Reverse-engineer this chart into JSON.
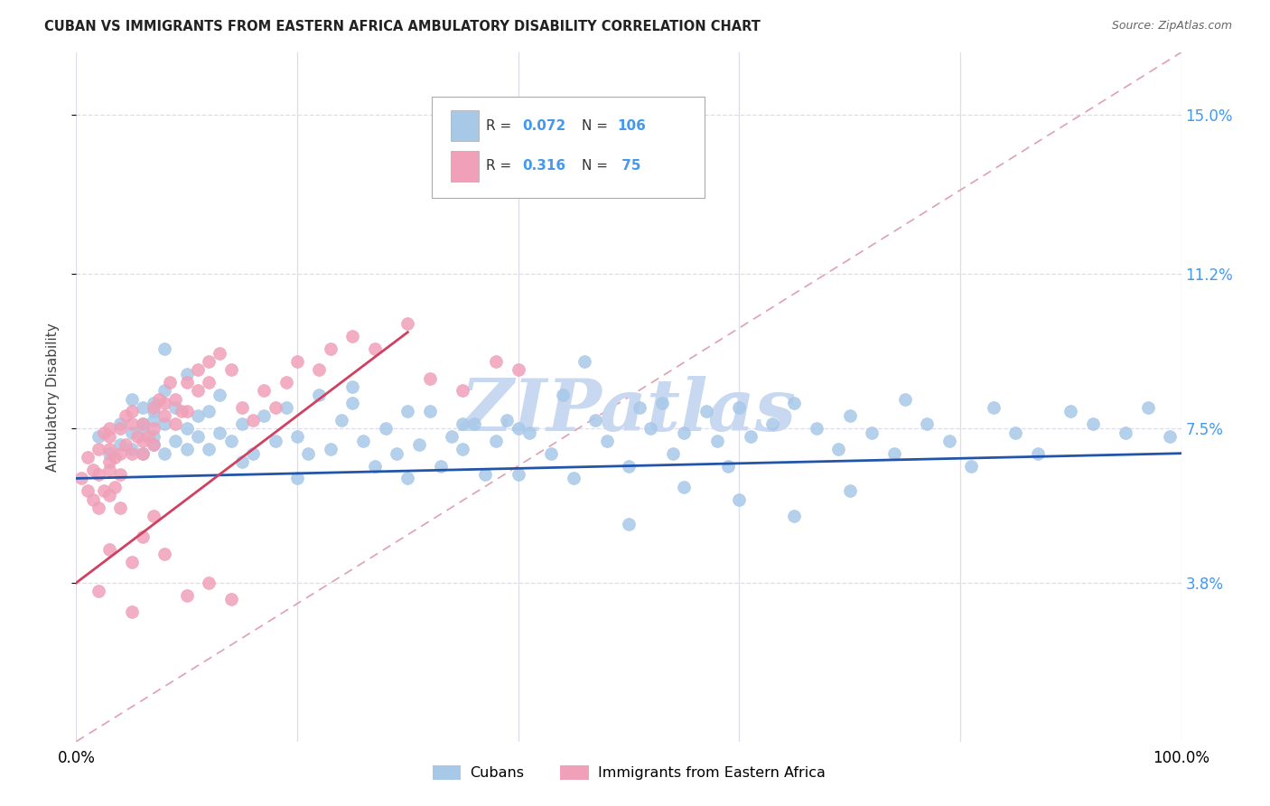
{
  "title": "CUBAN VS IMMIGRANTS FROM EASTERN AFRICA AMBULATORY DISABILITY CORRELATION CHART",
  "source": "Source: ZipAtlas.com",
  "ylabel": "Ambulatory Disability",
  "xlim": [
    0,
    1.0
  ],
  "ylim": [
    0.0,
    0.165
  ],
  "yticks": [
    0.038,
    0.075,
    0.112,
    0.15
  ],
  "ytick_labels": [
    "3.8%",
    "7.5%",
    "11.2%",
    "15.0%"
  ],
  "xticks": [
    0.0,
    0.2,
    0.4,
    0.6,
    0.8,
    1.0
  ],
  "xtick_labels": [
    "0.0%",
    "",
    "",
    "",
    "",
    "100.0%"
  ],
  "label_cubans": "Cubans",
  "label_eastern_africa": "Immigrants from Eastern Africa",
  "blue_color": "#a8c8e8",
  "pink_color": "#f0a0b8",
  "blue_line_color": "#2255aa",
  "pink_line_color": "#d04060",
  "dashed_line_color": "#e0a0b0",
  "watermark_text": "ZIPatlas",
  "watermark_color": "#c8d8f0",
  "background_color": "#ffffff",
  "grid_color": "#ddddee",
  "blue_slope": 0.006,
  "blue_intercept": 0.063,
  "pink_slope": 0.2,
  "pink_intercept": 0.038,
  "pink_line_xmin": 0.0,
  "pink_line_xmax": 0.3,
  "cubans_x": [
    0.02,
    0.03,
    0.04,
    0.04,
    0.05,
    0.05,
    0.05,
    0.06,
    0.06,
    0.06,
    0.07,
    0.07,
    0.07,
    0.07,
    0.08,
    0.08,
    0.08,
    0.09,
    0.09,
    0.1,
    0.1,
    0.11,
    0.11,
    0.12,
    0.12,
    0.13,
    0.13,
    0.14,
    0.15,
    0.16,
    0.17,
    0.18,
    0.19,
    0.2,
    0.21,
    0.22,
    0.23,
    0.24,
    0.25,
    0.26,
    0.27,
    0.28,
    0.29,
    0.3,
    0.31,
    0.32,
    0.33,
    0.34,
    0.35,
    0.36,
    0.37,
    0.38,
    0.39,
    0.4,
    0.41,
    0.43,
    0.44,
    0.46,
    0.47,
    0.48,
    0.5,
    0.51,
    0.52,
    0.53,
    0.54,
    0.55,
    0.57,
    0.58,
    0.59,
    0.6,
    0.61,
    0.63,
    0.65,
    0.67,
    0.69,
    0.7,
    0.72,
    0.74,
    0.75,
    0.77,
    0.79,
    0.81,
    0.83,
    0.85,
    0.87,
    0.9,
    0.92,
    0.95,
    0.97,
    0.99,
    0.25,
    0.3,
    0.35,
    0.4,
    0.45,
    0.5,
    0.55,
    0.6,
    0.65,
    0.7,
    0.15,
    0.2,
    0.1,
    0.08,
    0.06,
    0.07
  ],
  "cubans_y": [
    0.073,
    0.069,
    0.071,
    0.076,
    0.074,
    0.07,
    0.082,
    0.069,
    0.075,
    0.08,
    0.071,
    0.077,
    0.073,
    0.079,
    0.076,
    0.069,
    0.084,
    0.072,
    0.08,
    0.07,
    0.075,
    0.078,
    0.073,
    0.07,
    0.079,
    0.074,
    0.083,
    0.072,
    0.076,
    0.069,
    0.078,
    0.072,
    0.08,
    0.073,
    0.069,
    0.083,
    0.07,
    0.077,
    0.081,
    0.072,
    0.066,
    0.075,
    0.069,
    0.063,
    0.071,
    0.079,
    0.066,
    0.073,
    0.07,
    0.076,
    0.064,
    0.072,
    0.077,
    0.075,
    0.074,
    0.069,
    0.083,
    0.091,
    0.077,
    0.072,
    0.066,
    0.08,
    0.075,
    0.081,
    0.069,
    0.074,
    0.079,
    0.072,
    0.066,
    0.08,
    0.073,
    0.076,
    0.081,
    0.075,
    0.07,
    0.078,
    0.074,
    0.069,
    0.082,
    0.076,
    0.072,
    0.066,
    0.08,
    0.074,
    0.069,
    0.079,
    0.076,
    0.074,
    0.08,
    0.073,
    0.085,
    0.079,
    0.076,
    0.064,
    0.063,
    0.052,
    0.061,
    0.058,
    0.054,
    0.06,
    0.067,
    0.063,
    0.088,
    0.094,
    0.076,
    0.081
  ],
  "eastern_x": [
    0.005,
    0.01,
    0.01,
    0.015,
    0.015,
    0.02,
    0.02,
    0.02,
    0.025,
    0.025,
    0.03,
    0.03,
    0.03,
    0.03,
    0.03,
    0.03,
    0.035,
    0.035,
    0.04,
    0.04,
    0.04,
    0.045,
    0.045,
    0.05,
    0.05,
    0.05,
    0.055,
    0.06,
    0.06,
    0.06,
    0.065,
    0.07,
    0.07,
    0.07,
    0.075,
    0.08,
    0.08,
    0.085,
    0.09,
    0.09,
    0.095,
    0.1,
    0.1,
    0.11,
    0.11,
    0.12,
    0.12,
    0.13,
    0.14,
    0.15,
    0.16,
    0.17,
    0.18,
    0.19,
    0.2,
    0.22,
    0.23,
    0.25,
    0.27,
    0.3,
    0.32,
    0.35,
    0.38,
    0.4,
    0.02,
    0.03,
    0.04,
    0.05,
    0.05,
    0.06,
    0.07,
    0.08,
    0.1,
    0.12,
    0.14
  ],
  "eastern_y": [
    0.063,
    0.06,
    0.068,
    0.065,
    0.058,
    0.064,
    0.07,
    0.056,
    0.06,
    0.074,
    0.067,
    0.073,
    0.059,
    0.065,
    0.07,
    0.075,
    0.061,
    0.068,
    0.069,
    0.075,
    0.064,
    0.071,
    0.078,
    0.069,
    0.076,
    0.079,
    0.073,
    0.069,
    0.076,
    0.072,
    0.073,
    0.08,
    0.075,
    0.071,
    0.082,
    0.078,
    0.081,
    0.086,
    0.082,
    0.076,
    0.079,
    0.086,
    0.079,
    0.089,
    0.084,
    0.091,
    0.086,
    0.093,
    0.089,
    0.08,
    0.077,
    0.084,
    0.08,
    0.086,
    0.091,
    0.089,
    0.094,
    0.097,
    0.094,
    0.1,
    0.087,
    0.084,
    0.091,
    0.089,
    0.036,
    0.046,
    0.056,
    0.031,
    0.043,
    0.049,
    0.054,
    0.045,
    0.035,
    0.038,
    0.034
  ]
}
